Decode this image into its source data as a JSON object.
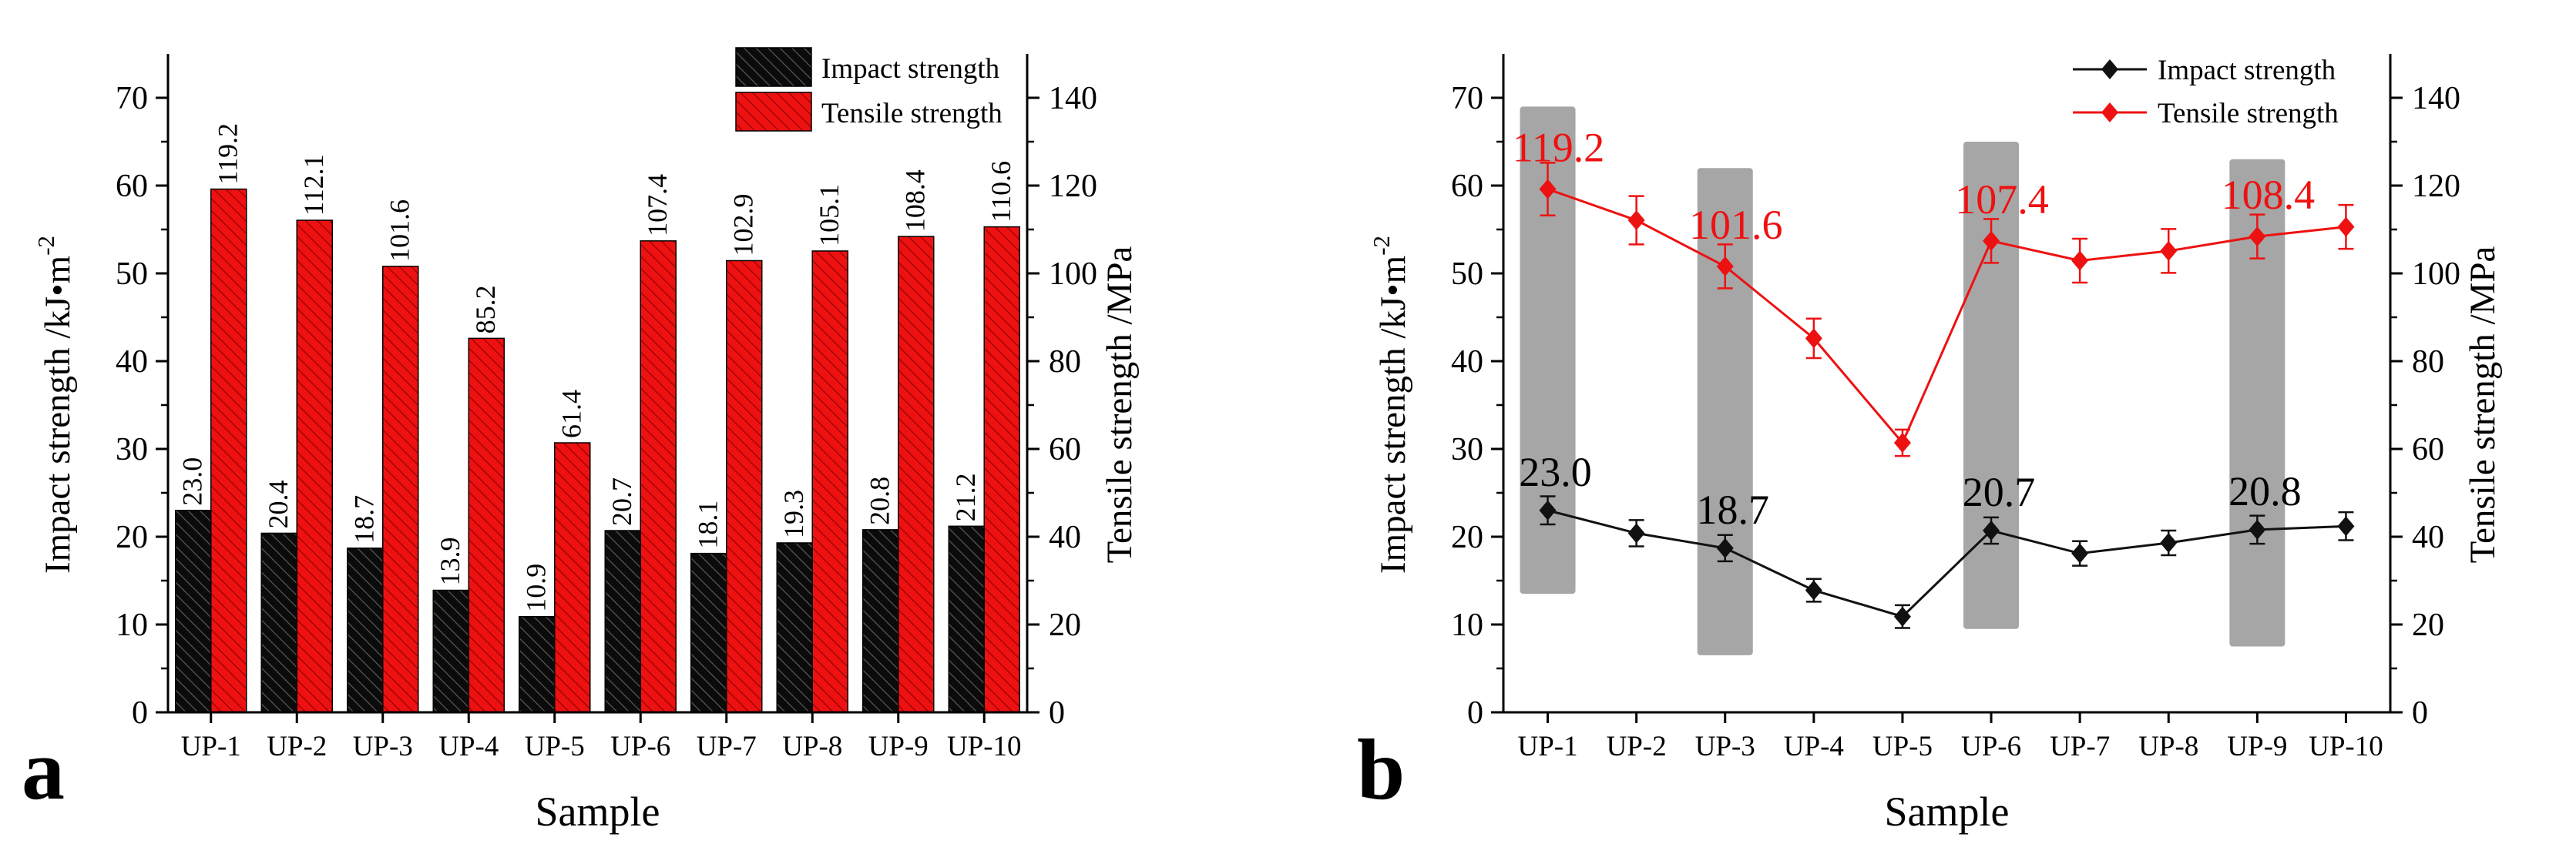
{
  "colors": {
    "impact": "#111111",
    "tensile": "#ee1111",
    "highlight": "#a6a6a6",
    "axis": "#000000"
  },
  "chart_data": [
    {
      "panel_label": "a",
      "type": "bar",
      "categories": [
        "UP-1",
        "UP-2",
        "UP-3",
        "UP-4",
        "UP-5",
        "UP-6",
        "UP-7",
        "UP-8",
        "UP-9",
        "UP-10"
      ],
      "series": [
        {
          "name": "Impact strength",
          "axis": "left",
          "values": [
            23.0,
            20.4,
            18.7,
            13.9,
            10.9,
            20.7,
            18.1,
            19.3,
            20.8,
            21.2
          ],
          "labels": [
            "23.0",
            "20.4",
            "18.7",
            "13.9",
            "10.9",
            "20.7",
            "18.1",
            "19.3",
            "20.8",
            "21.2"
          ]
        },
        {
          "name": "Tensile strength",
          "axis": "right",
          "values": [
            119.2,
            112.1,
            101.6,
            85.2,
            61.4,
            107.4,
            102.9,
            105.1,
            108.4,
            110.6
          ],
          "labels": [
            "119.2",
            "112.1",
            "101.6",
            "85.2",
            "61.4",
            "107.4",
            "102.9",
            "105.1",
            "108.4",
            "110.6"
          ]
        }
      ],
      "xlabel": "Sample",
      "ylabel": "Impact strength /kJ•m",
      "ylabel_sup": "-2",
      "ylabel_right": "Tensile strength /MPa",
      "ylim": [
        0,
        75
      ],
      "ylim_right": [
        0,
        150
      ],
      "yticks": [
        "0",
        "10",
        "20",
        "30",
        "40",
        "50",
        "60",
        "70"
      ],
      "yticks_right": [
        "0",
        "20",
        "40",
        "60",
        "80",
        "100",
        "120",
        "140"
      ],
      "legend_position": "top-right"
    },
    {
      "panel_label": "b",
      "type": "line",
      "categories": [
        "UP-1",
        "UP-2",
        "UP-3",
        "UP-4",
        "UP-5",
        "UP-6",
        "UP-7",
        "UP-8",
        "UP-9",
        "UP-10"
      ],
      "series": [
        {
          "name": "Impact strength",
          "axis": "left",
          "values": [
            23.0,
            20.4,
            18.7,
            13.9,
            10.9,
            20.7,
            18.1,
            19.3,
            20.8,
            21.2
          ],
          "errors": [
            1.6,
            1.5,
            1.5,
            1.3,
            1.3,
            1.5,
            1.4,
            1.4,
            1.6,
            1.6
          ]
        },
        {
          "name": "Tensile strength",
          "axis": "right",
          "values": [
            119.2,
            112.1,
            101.6,
            85.2,
            61.4,
            107.4,
            102.9,
            105.1,
            108.4,
            110.6
          ],
          "errors": [
            6.0,
            5.5,
            5.0,
            4.5,
            3.0,
            5.0,
            5.0,
            5.0,
            5.0,
            5.0
          ]
        }
      ],
      "highlights": [
        {
          "category": "UP-1",
          "from": 13.5,
          "to": 69
        },
        {
          "category": "UP-3",
          "from": 6.5,
          "to": 62
        },
        {
          "category": "UP-6",
          "from": 9.5,
          "to": 65
        },
        {
          "category": "UP-9",
          "from": 7.5,
          "to": 63
        }
      ],
      "annotations": [
        {
          "category": "UP-1",
          "series": "Impact strength",
          "text": "23.0"
        },
        {
          "category": "UP-3",
          "series": "Impact strength",
          "text": "18.7"
        },
        {
          "category": "UP-6",
          "series": "Impact strength",
          "text": "20.7"
        },
        {
          "category": "UP-9",
          "series": "Impact strength",
          "text": "20.8"
        },
        {
          "category": "UP-1",
          "series": "Tensile strength",
          "text": "119.2"
        },
        {
          "category": "UP-3",
          "series": "Tensile strength",
          "text": "101.6"
        },
        {
          "category": "UP-6",
          "series": "Tensile strength",
          "text": "107.4"
        },
        {
          "category": "UP-9",
          "series": "Tensile strength",
          "text": "108.4"
        }
      ],
      "xlabel": "Sample",
      "ylabel": "Impact strength /kJ•m",
      "ylabel_sup": "-2",
      "ylabel_right": "Tensile strength /MPa",
      "ylim": [
        0,
        75
      ],
      "ylim_right": [
        0,
        150
      ],
      "yticks": [
        "0",
        "10",
        "20",
        "30",
        "40",
        "50",
        "60",
        "70"
      ],
      "yticks_right": [
        "0",
        "20",
        "40",
        "60",
        "80",
        "100",
        "120",
        "140"
      ],
      "legend_position": "top-right"
    }
  ]
}
